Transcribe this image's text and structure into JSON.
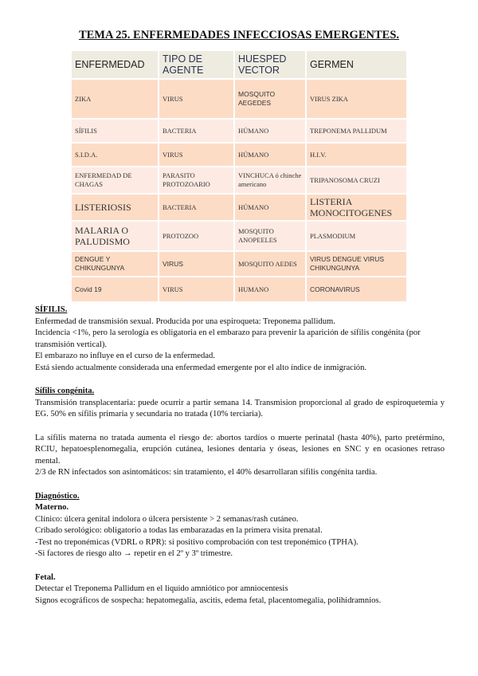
{
  "title": "TEMA 25. ENFERMEDADES INFECCIOSAS EMERGENTES.",
  "table": {
    "headers": [
      "ENFERMEDAD",
      "TIPO DE AGENTE",
      "HUESPED VECTOR",
      "GERMEN"
    ],
    "rows": [
      [
        "ZIKA",
        "VIRUS",
        "MOSQUITO AEGEDES",
        "VIRUS ZIKA"
      ],
      [
        "SÍFILIS",
        "BACTERIA",
        "HÚMANO",
        "TREPONEMA PALLIDUM"
      ],
      [
        "S.I.D.A.",
        "VIRUS",
        "HÚMANO",
        "H.I.V."
      ],
      [
        "ENFERMEDAD DE CHAGAS",
        "PARASITO PROTOZOARIO",
        "VINCHUCA ó chinche americano",
        "TRIPANOSOMA CRUZI"
      ],
      [
        "LISTERIOSIS",
        "BACTERIA",
        "HÚMANO",
        "LISTERIA MONOCITOGENES"
      ],
      [
        "MALARIA O PALUDISMO",
        "PROTOZOO",
        "MOSQUITO ANOPEELES",
        "PLASMODIUM"
      ],
      [
        "DENGUE Y CHIKUNGUNYA",
        "VIRUS",
        "MOSQUITO AEDES",
        "VIRUS DENGUE VIRUS CHIKUNGUNYA"
      ],
      [
        "Covid 19",
        "VIRUS",
        "HUMANO",
        "CORONAVIRUS"
      ]
    ],
    "colors": {
      "header_bg": "#eeebe0",
      "row_dark": "#fddcc6",
      "row_light": "#fdebe3"
    }
  },
  "sifilis": {
    "heading": "SÍFILIS.",
    "lines": [
      "Enfermedad de transmisión sexual. Producida por una espiroqueta: Treponema pallidum.",
      "Incidencia <1%, pero la serología es obligatoria en el embarazo para prevenir la aparición de sífilis congénita (por transmisión vertical).",
      "El embarazo no influye en el curso de la enfermedad.",
      "Está siendo actualmente considerada una enfermedad emergente por el alto índice de inmigración."
    ]
  },
  "congenita": {
    "heading": "Sífilis congénita.",
    "p1": "Transmisión transplacentaria: puede ocurrir a partir semana 14. Transmision proporcional al grado de espiroquetemia y EG. 50% en sífilis primaria y secundaria no tratada (10% terciaria).",
    "p2": "La sífilis materna no tratada aumenta el riesgo de: abortos tardíos o muerte perinatal (hasta 40%), parto pretérmino, RCIU, hepatoesplenomegalia, erupción cutánea, lesiones dentaria y óseas, lesiones en SNC y en ocasiones retraso mental.",
    "p3": "2/3 de RN infectados son asintomáticos: sin tratamiento, el 40% desarrollaran sífilis congénita tardía."
  },
  "diagnostico": {
    "heading": "Diagnóstico.",
    "materno_heading": "Materno.",
    "materno_lines": [
      "Clínico: úlcera genital indolora o úlcera persistente > 2 semanas/rash cutáneo.",
      "Cribado serológico: obligatorio a todas las embarazadas en la primera visita prenatal.",
      "-Test no treponémicas (VDRL o RPR): si positivo comprobación con test treponémico (TPHA).",
      "-Si factores de riesgo alto → repetir en el 2º y 3º trimestre."
    ],
    "fetal_heading": "Fetal.",
    "fetal_lines": [
      "Detectar el Treponema Pallidum en el liquido amniótico por amniocentesis",
      "Signos ecográficos de sospecha: hepatomegalia, ascitis, edema fetal, placentomegalia, polihidramnios."
    ]
  }
}
